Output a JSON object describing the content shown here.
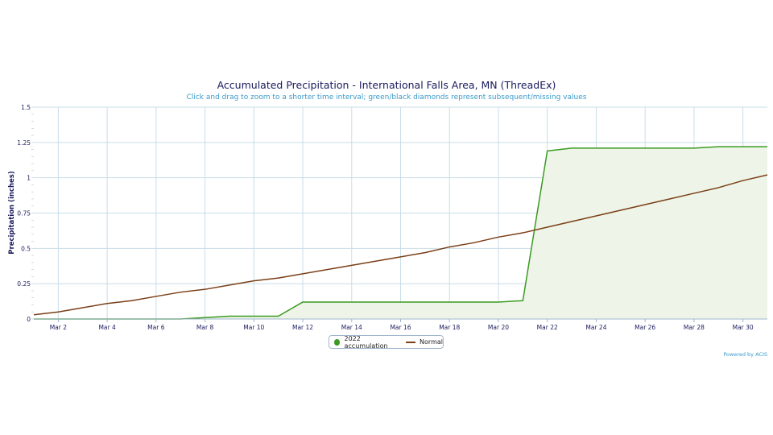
{
  "title": "Accumulated Precipitation - International Falls Area, MN (ThreadEx)",
  "subtitle": "Click and drag to zoom to a shorter time interval; green/black diamonds represent subsequent/missing values",
  "credits": "Powered by ACIS",
  "colors": {
    "accumulation": "#3a9a22",
    "normal": "#7a3f17",
    "fill": "#eef5e8",
    "grid": "#c9dde8",
    "axis_text": "#1a1a5e"
  },
  "chart_data": {
    "type": "area",
    "xlabel": "",
    "ylabel": "Precipitation (inches)",
    "ylim": [
      0,
      1.5
    ],
    "yticks": [
      0,
      0.25,
      0.5,
      0.75,
      1,
      1.25,
      1.5
    ],
    "ytick_labels": [
      "0",
      "0.25",
      "0.5",
      "0.75",
      "1",
      "1.25",
      "1.5"
    ],
    "x": [
      "Mar 1",
      "Mar 2",
      "Mar 3",
      "Mar 4",
      "Mar 5",
      "Mar 6",
      "Mar 7",
      "Mar 8",
      "Mar 9",
      "Mar 10",
      "Mar 11",
      "Mar 12",
      "Mar 13",
      "Mar 14",
      "Mar 15",
      "Mar 16",
      "Mar 17",
      "Mar 18",
      "Mar 19",
      "Mar 20",
      "Mar 21",
      "Mar 22",
      "Mar 23",
      "Mar 24",
      "Mar 25",
      "Mar 26",
      "Mar 27",
      "Mar 28",
      "Mar 29",
      "Mar 30",
      "Mar 31"
    ],
    "xtick_labels": [
      "Mar 2",
      "Mar 4",
      "Mar 6",
      "Mar 8",
      "Mar 10",
      "Mar 12",
      "Mar 14",
      "Mar 16",
      "Mar 18",
      "Mar 20",
      "Mar 22",
      "Mar 24",
      "Mar 26",
      "Mar 28",
      "Mar 30"
    ],
    "grid": true,
    "legend": "bottom-center",
    "series": [
      {
        "name": "2022 accumulation",
        "values": [
          0,
          0,
          0,
          0,
          0,
          0,
          0,
          0.01,
          0.02,
          0.02,
          0.02,
          0.12,
          0.12,
          0.12,
          0.12,
          0.12,
          0.12,
          0.12,
          0.12,
          0.12,
          0.13,
          1.19,
          1.21,
          1.21,
          1.21,
          1.21,
          1.21,
          1.21,
          1.22,
          1.22,
          1.22
        ]
      },
      {
        "name": "Normal",
        "values": [
          0.03,
          0.05,
          0.08,
          0.11,
          0.13,
          0.16,
          0.19,
          0.21,
          0.24,
          0.27,
          0.29,
          0.32,
          0.35,
          0.38,
          0.41,
          0.44,
          0.47,
          0.51,
          0.54,
          0.58,
          0.61,
          0.65,
          0.69,
          0.73,
          0.77,
          0.81,
          0.85,
          0.89,
          0.93,
          0.98,
          1.02
        ]
      }
    ]
  }
}
